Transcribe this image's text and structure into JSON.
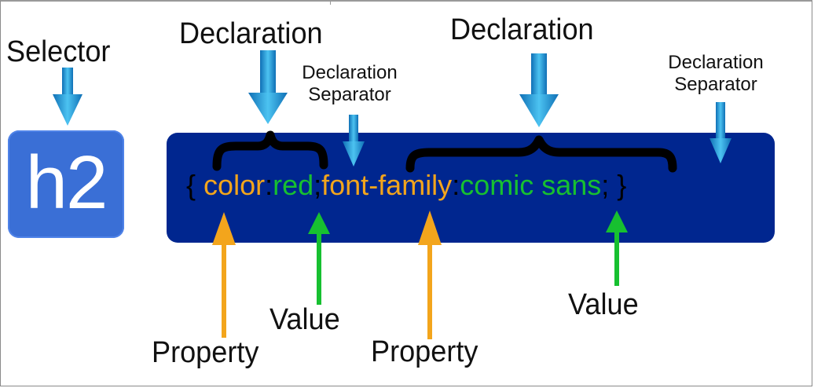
{
  "selector": {
    "label": "Selector",
    "tag": "h2"
  },
  "code": {
    "open_brace": "{",
    "property1": "color",
    "colon1": ":",
    "value1": "red",
    "separator1": ";",
    "property2": "font-family",
    "colon2": ":",
    "value2": "comic sans",
    "separator2": ";",
    "close_brace": "}"
  },
  "labels": {
    "declaration1": "Declaration",
    "declaration2": "Declaration",
    "separator1_line1": "Declaration",
    "separator1_line2": "Separator",
    "separator2_line1": "Declaration",
    "separator2_line2": "Separator",
    "property1": "Property",
    "property2": "Property",
    "value1": "Value",
    "value2": "Value"
  },
  "colors": {
    "property": "#f3a51c",
    "value": "#17c030",
    "code_background": "#00268f",
    "selector_background": "#3a6fd6",
    "down_arrow": "#2aa9e0",
    "property_arrow": "#f3a51c",
    "value_arrow": "#17c030"
  }
}
